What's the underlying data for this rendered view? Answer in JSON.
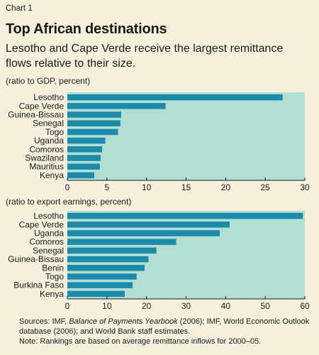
{
  "header": {
    "chart_number": "Chart 1",
    "title": "Top African destinations",
    "subtitle": "Lesotho and Cape Verde receive the largest remittance flows relative to their size."
  },
  "footer": {
    "sources_prefix": "Sources: IMF,",
    "sources_italic": "Balance of Payments Yearbook",
    "sources_rest": "(2006); IMF, World Economic Outlook database (2006); and World Bank staff estimates.",
    "note": "Note: Rankings are based on average remittance inflows for 2000–05."
  },
  "colors": {
    "background": "#f4f0dc",
    "plot_background": "#b3ded4",
    "bar": "#1c8aa9"
  },
  "chart_data": [
    {
      "type": "bar",
      "orientation": "horizontal",
      "unit_label": "(ratio to GDP, percent)",
      "categories": [
        "Lesotho",
        "Cape Verde",
        "Guinea-Bissau",
        "Senegal",
        "Togo",
        "Uganda",
        "Comoros",
        "Swaziland",
        "Mauritius",
        "Kenya"
      ],
      "values": [
        27.2,
        12.4,
        6.8,
        6.7,
        6.4,
        4.8,
        4.4,
        4.2,
        4.1,
        3.4
      ],
      "xlim": [
        0,
        30
      ],
      "xticks": [
        0,
        5,
        10,
        15,
        20,
        25,
        30
      ],
      "grid": false
    },
    {
      "type": "bar",
      "orientation": "horizontal",
      "unit_label": "(ratio to export earnings, percent)",
      "categories": [
        "Lesotho",
        "Cape Verde",
        "Uganda",
        "Comoros",
        "Senegal",
        "Guinea-Bissau",
        "Benin",
        "Togo",
        "Burkina Faso",
        "Kenya"
      ],
      "values": [
        59.5,
        41.0,
        38.5,
        27.5,
        22.5,
        20.5,
        19.5,
        17.5,
        16.5,
        14.5
      ],
      "xlim": [
        0,
        60
      ],
      "xticks": [
        0,
        10,
        20,
        30,
        40,
        50,
        60
      ],
      "grid": false
    }
  ]
}
